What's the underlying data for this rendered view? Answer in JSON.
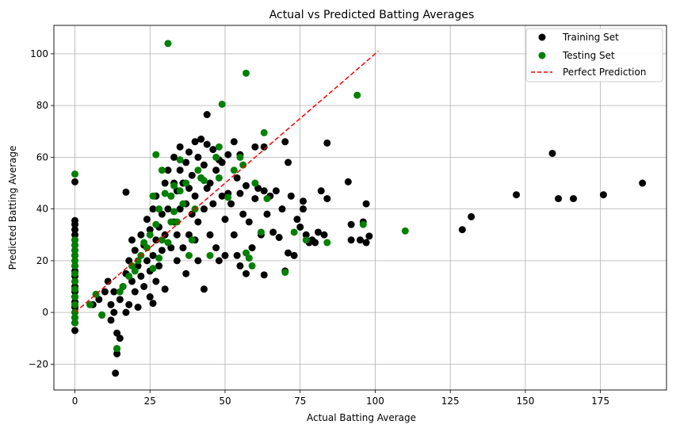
{
  "chart_data": {
    "type": "scatter",
    "title": "Actual vs Predicted Batting Averages",
    "xlabel": "Actual Batting Average",
    "ylabel": "Predicted Batting Average",
    "xlim": [
      -7,
      197
    ],
    "ylim": [
      -30,
      111
    ],
    "xticks": [
      0,
      25,
      50,
      75,
      100,
      125,
      150,
      175
    ],
    "yticks": [
      -20,
      0,
      20,
      40,
      60,
      80,
      100
    ],
    "grid": true,
    "legend_position": "top-right",
    "series": [
      {
        "name": "Training Set",
        "kind": "points",
        "color": "#000000",
        "points": [
          [
            0,
            -7
          ],
          [
            0,
            -4
          ],
          [
            0,
            -2
          ],
          [
            0,
            0
          ],
          [
            0,
            2
          ],
          [
            0,
            4
          ],
          [
            0,
            6
          ],
          [
            0,
            8
          ],
          [
            0,
            10
          ],
          [
            0,
            12
          ],
          [
            0,
            14
          ],
          [
            0,
            16
          ],
          [
            0,
            18
          ],
          [
            0,
            20
          ],
          [
            0,
            22
          ],
          [
            0,
            24
          ],
          [
            0,
            26
          ],
          [
            0,
            28
          ],
          [
            0,
            30
          ],
          [
            0,
            32
          ],
          [
            0,
            34
          ],
          [
            0,
            35.5
          ],
          [
            0,
            50.5
          ],
          [
            6,
            3
          ],
          [
            8,
            5
          ],
          [
            9,
            -1
          ],
          [
            10,
            8
          ],
          [
            11,
            12
          ],
          [
            12,
            3
          ],
          [
            12,
            -3
          ],
          [
            13,
            8
          ],
          [
            13,
            0
          ],
          [
            14,
            -14
          ],
          [
            14,
            -16
          ],
          [
            14,
            -8
          ],
          [
            13.5,
            -23.5
          ],
          [
            15,
            5
          ],
          [
            15,
            -10
          ],
          [
            16,
            10
          ],
          [
            17,
            15
          ],
          [
            17,
            0
          ],
          [
            17,
            46.5
          ],
          [
            18,
            20
          ],
          [
            18,
            3
          ],
          [
            19,
            28
          ],
          [
            19,
            12
          ],
          [
            20,
            8
          ],
          [
            20,
            24
          ],
          [
            21,
            18
          ],
          [
            21,
            2
          ],
          [
            22,
            14
          ],
          [
            22,
            30
          ],
          [
            23,
            26
          ],
          [
            23,
            10
          ],
          [
            24,
            36
          ],
          [
            24,
            20
          ],
          [
            25,
            32
          ],
          [
            25,
            16
          ],
          [
            25,
            6
          ],
          [
            26,
            40
          ],
          [
            26,
            22
          ],
          [
            26,
            3.5
          ],
          [
            27,
            45
          ],
          [
            27,
            28
          ],
          [
            27,
            12
          ],
          [
            28,
            33
          ],
          [
            28,
            18
          ],
          [
            29,
            38
          ],
          [
            29,
            24
          ],
          [
            30,
            50
          ],
          [
            30,
            30
          ],
          [
            30,
            9
          ],
          [
            31,
            55
          ],
          [
            31,
            40
          ],
          [
            32,
            45
          ],
          [
            32,
            25
          ],
          [
            33,
            60
          ],
          [
            33,
            50
          ],
          [
            33,
            35
          ],
          [
            34,
            47
          ],
          [
            34,
            30
          ],
          [
            34,
            20
          ],
          [
            35,
            64
          ],
          [
            35,
            55
          ],
          [
            35,
            40
          ],
          [
            36,
            50
          ],
          [
            36,
            25
          ],
          [
            37,
            58
          ],
          [
            37,
            42
          ],
          [
            37,
            15
          ],
          [
            38,
            62
          ],
          [
            38,
            48
          ],
          [
            38,
            30
          ],
          [
            39,
            53
          ],
          [
            39,
            38
          ],
          [
            40,
            66
          ],
          [
            40,
            45
          ],
          [
            40,
            28
          ],
          [
            41,
            60
          ],
          [
            41,
            35
          ],
          [
            41,
            20
          ],
          [
            42,
            67
          ],
          [
            42,
            52
          ],
          [
            43,
            57
          ],
          [
            43,
            40
          ],
          [
            43,
            9
          ],
          [
            44,
            76.5
          ],
          [
            44,
            65
          ],
          [
            44,
            48
          ],
          [
            45,
            50
          ],
          [
            45,
            30
          ],
          [
            46,
            63
          ],
          [
            46,
            42
          ],
          [
            47,
            55
          ],
          [
            47,
            25
          ],
          [
            48,
            59
          ],
          [
            48,
            20
          ],
          [
            49,
            58
          ],
          [
            49,
            45
          ],
          [
            50,
            36
          ],
          [
            50,
            22
          ],
          [
            51,
            61
          ],
          [
            51,
            46
          ],
          [
            52,
            42
          ],
          [
            53,
            66
          ],
          [
            53,
            30
          ],
          [
            54,
            52
          ],
          [
            54,
            22
          ],
          [
            55,
            61
          ],
          [
            55,
            46
          ],
          [
            55,
            18
          ],
          [
            56,
            38
          ],
          [
            57,
            49
          ],
          [
            57,
            15
          ],
          [
            58,
            35
          ],
          [
            59,
            25
          ],
          [
            60,
            64
          ],
          [
            60,
            44
          ],
          [
            61,
            48
          ],
          [
            62,
            30
          ],
          [
            63,
            64
          ],
          [
            63,
            47
          ],
          [
            63,
            14.5
          ],
          [
            64,
            38
          ],
          [
            65,
            45
          ],
          [
            66,
            31
          ],
          [
            67,
            47
          ],
          [
            68,
            29
          ],
          [
            69,
            40
          ],
          [
            70,
            66
          ],
          [
            70,
            16
          ],
          [
            71,
            58
          ],
          [
            71,
            23
          ],
          [
            72,
            45
          ],
          [
            73,
            22
          ],
          [
            74,
            36
          ],
          [
            75,
            33
          ],
          [
            76,
            43
          ],
          [
            76,
            40
          ],
          [
            77,
            30
          ],
          [
            78,
            27
          ],
          [
            79,
            28
          ],
          [
            80,
            27
          ],
          [
            81,
            31
          ],
          [
            82,
            47
          ],
          [
            83,
            30
          ],
          [
            84,
            65.5
          ],
          [
            84,
            44
          ],
          [
            91,
            50.5
          ],
          [
            92,
            34
          ],
          [
            92,
            28
          ],
          [
            95,
            28
          ],
          [
            96,
            35
          ],
          [
            97,
            42
          ],
          [
            97,
            27
          ],
          [
            98,
            29.5
          ],
          [
            129,
            32
          ],
          [
            132,
            37
          ],
          [
            147,
            45.5
          ],
          [
            159,
            61.5
          ],
          [
            161,
            44
          ],
          [
            166,
            44
          ],
          [
            176,
            45.5
          ],
          [
            189,
            50
          ]
        ]
      },
      {
        "name": "Testing Set",
        "kind": "points",
        "color": "#008000",
        "points": [
          [
            0,
            53.5
          ],
          [
            0,
            28
          ],
          [
            0,
            26
          ],
          [
            0,
            24
          ],
          [
            0,
            22
          ],
          [
            0,
            20
          ],
          [
            0,
            18
          ],
          [
            0,
            15
          ],
          [
            0,
            12
          ],
          [
            0,
            9
          ],
          [
            0,
            6
          ],
          [
            0,
            3
          ],
          [
            0,
            0
          ],
          [
            0,
            -2
          ],
          [
            0,
            -4
          ],
          [
            5,
            3
          ],
          [
            7,
            7
          ],
          [
            9,
            -1
          ],
          [
            14,
            -14
          ],
          [
            15,
            8
          ],
          [
            16,
            10
          ],
          [
            18,
            14
          ],
          [
            19,
            18
          ],
          [
            20,
            16
          ],
          [
            21,
            20
          ],
          [
            22,
            22
          ],
          [
            23,
            27
          ],
          [
            24,
            25
          ],
          [
            25,
            30
          ],
          [
            26,
            45
          ],
          [
            26,
            17
          ],
          [
            27,
            61
          ],
          [
            27,
            34
          ],
          [
            28,
            40
          ],
          [
            28,
            21
          ],
          [
            29,
            28
          ],
          [
            29,
            55
          ],
          [
            30,
            46
          ],
          [
            31,
            104
          ],
          [
            31,
            27
          ],
          [
            32,
            45
          ],
          [
            32,
            35
          ],
          [
            33,
            49
          ],
          [
            33,
            39
          ],
          [
            34,
            35
          ],
          [
            35,
            47
          ],
          [
            35,
            59
          ],
          [
            36,
            42
          ],
          [
            37,
            50
          ],
          [
            38,
            22
          ],
          [
            39,
            28
          ],
          [
            40,
            40
          ],
          [
            41,
            55
          ],
          [
            42,
            52
          ],
          [
            43,
            51
          ],
          [
            45,
            22
          ],
          [
            47,
            60
          ],
          [
            48,
            64
          ],
          [
            48,
            52
          ],
          [
            49,
            80.5
          ],
          [
            51,
            44.5
          ],
          [
            53,
            55
          ],
          [
            55,
            60
          ],
          [
            56,
            57
          ],
          [
            57,
            92.5
          ],
          [
            57,
            23
          ],
          [
            58,
            21
          ],
          [
            59,
            18
          ],
          [
            60,
            50
          ],
          [
            62,
            31
          ],
          [
            63,
            69.5
          ],
          [
            64,
            44
          ],
          [
            70,
            15.5
          ],
          [
            73,
            31
          ],
          [
            77,
            28
          ],
          [
            84,
            27
          ],
          [
            94,
            84
          ],
          [
            96,
            34
          ],
          [
            110,
            31.5
          ]
        ]
      },
      {
        "name": "Perfect Prediction",
        "kind": "line",
        "color": "#ff0000",
        "style": "dashed",
        "points": [
          [
            0,
            0
          ],
          [
            101,
            101
          ]
        ]
      }
    ]
  }
}
